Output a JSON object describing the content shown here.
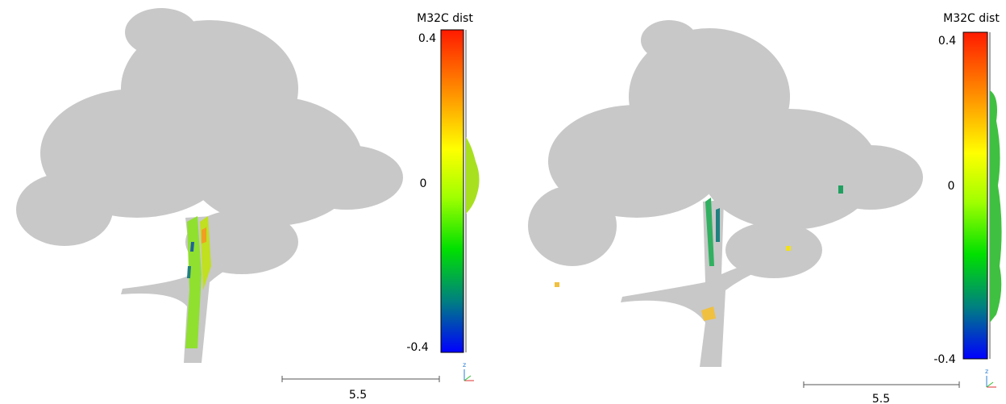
{
  "panels": [
    {
      "colorbar": {
        "title": "M32C dist",
        "ticks": [
          "0.4",
          "0",
          "-0.4"
        ]
      },
      "scale_bar": {
        "label": "5.5"
      },
      "axis_label": "z"
    },
    {
      "colorbar": {
        "title": "M32C dist",
        "ticks": [
          "0.4",
          "0",
          "-0.4"
        ]
      },
      "scale_bar": {
        "label": "5.5"
      },
      "axis_label": "z"
    }
  ]
}
